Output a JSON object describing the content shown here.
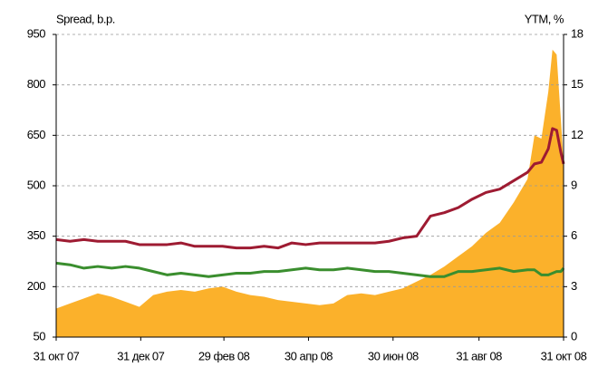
{
  "chart_data": {
    "type": "area",
    "y_label": "Spread, b.p.",
    "y2_label": "YTM, %",
    "x": [
      0,
      10,
      20,
      30,
      40,
      50,
      60,
      70,
      80,
      90,
      100,
      110,
      120,
      130,
      140,
      150,
      160,
      170,
      180,
      190,
      200,
      210,
      220,
      230,
      240,
      250,
      260,
      270,
      280,
      290,
      300,
      310,
      320,
      330,
      340,
      345,
      350,
      355,
      358,
      361,
      364,
      366
    ],
    "xlim": [
      0,
      366
    ],
    "xticks": [
      {
        "value": 0,
        "label": "31 окт 07"
      },
      {
        "value": 61,
        "label": "31 дек 07"
      },
      {
        "value": 121,
        "label": "29 фев 08"
      },
      {
        "value": 182,
        "label": "30 апр 08"
      },
      {
        "value": 243,
        "label": "30 июн 08"
      },
      {
        "value": 305,
        "label": "31 авг 08"
      },
      {
        "value": 366,
        "label": "31 окт 08"
      }
    ],
    "ylim": [
      50,
      950
    ],
    "yticks": [
      50,
      200,
      350,
      500,
      650,
      800,
      950
    ],
    "y2lim": [
      0,
      18
    ],
    "y2ticks": [
      0,
      3,
      6,
      9,
      12,
      15,
      18
    ],
    "grid": true,
    "series": [
      {
        "type": "area",
        "axis": "y",
        "color": "#fbb12b",
        "values": [
          135,
          150,
          165,
          180,
          170,
          155,
          140,
          175,
          185,
          190,
          185,
          195,
          200,
          185,
          175,
          170,
          160,
          155,
          150,
          145,
          150,
          175,
          180,
          175,
          185,
          195,
          215,
          235,
          260,
          290,
          320,
          360,
          390,
          450,
          520,
          650,
          640,
          780,
          905,
          890,
          700,
          570
        ]
      },
      {
        "type": "line",
        "axis": "y2",
        "color": "#9e1b32",
        "values": [
          5.8,
          5.7,
          5.8,
          5.7,
          5.7,
          5.7,
          5.5,
          5.5,
          5.5,
          5.6,
          5.4,
          5.4,
          5.4,
          5.3,
          5.3,
          5.4,
          5.3,
          5.6,
          5.5,
          5.6,
          5.6,
          5.6,
          5.6,
          5.6,
          5.7,
          5.9,
          6.0,
          7.2,
          7.4,
          7.7,
          8.2,
          8.6,
          8.8,
          9.3,
          9.8,
          10.3,
          10.4,
          11.2,
          12.4,
          12.3,
          11.0,
          10.3
        ]
      },
      {
        "type": "line",
        "axis": "y2",
        "color": "#3a8e2e",
        "values": [
          4.4,
          4.3,
          4.1,
          4.2,
          4.1,
          4.2,
          4.1,
          3.9,
          3.7,
          3.8,
          3.7,
          3.6,
          3.7,
          3.8,
          3.8,
          3.9,
          3.9,
          4.0,
          4.1,
          4.0,
          4.0,
          4.1,
          4.0,
          3.9,
          3.9,
          3.8,
          3.7,
          3.6,
          3.6,
          3.9,
          3.9,
          4.0,
          4.1,
          3.9,
          4.0,
          4.0,
          3.7,
          3.7,
          3.8,
          3.9,
          3.9,
          4.1
        ]
      }
    ]
  }
}
